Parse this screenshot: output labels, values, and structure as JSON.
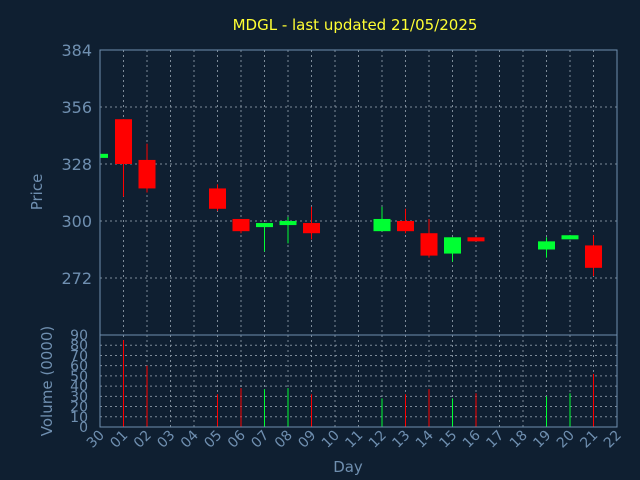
{
  "chart_data": {
    "type": "candlestick",
    "title": "MDGL - last updated 21/05/2025",
    "price_axis": {
      "label": "Price",
      "ticks": [
        272,
        300,
        328,
        356,
        384
      ],
      "ylim": [
        244,
        384
      ]
    },
    "volume_axis": {
      "label": "Volume (0000)",
      "ticks": [
        0,
        10,
        20,
        30,
        40,
        50,
        60,
        70,
        80,
        90
      ],
      "ylim": [
        0,
        90
      ]
    },
    "x_axis": {
      "label": "Day",
      "ticks": [
        "30",
        "01",
        "02",
        "03",
        "04",
        "05",
        "06",
        "07",
        "08",
        "09",
        "10",
        "11",
        "12",
        "13",
        "14",
        "15",
        "16",
        "17",
        "18",
        "19",
        "20",
        "21",
        "22"
      ]
    },
    "grid": true,
    "colors": {
      "background": "#0f1f31",
      "up": "#00ff33",
      "down": "#ff0000",
      "grid": "#7d8b99",
      "text": "#6f8fb0",
      "title": "#ffff33",
      "border": "#6f8fb0"
    },
    "candles": [
      {
        "day": "30",
        "open": 331,
        "high": 333,
        "low": 331,
        "close": 333,
        "volume": 0
      },
      {
        "day": "01",
        "open": 350,
        "high": 350,
        "low": 312,
        "close": 328,
        "volume": 85
      },
      {
        "day": "02",
        "open": 330,
        "high": 338,
        "low": 314,
        "close": 316,
        "volume": 60
      },
      {
        "day": "05",
        "open": 316,
        "high": 318,
        "low": 305,
        "close": 306,
        "volume": 32
      },
      {
        "day": "06",
        "open": 301,
        "high": 301,
        "low": 294,
        "close": 295,
        "volume": 38
      },
      {
        "day": "07",
        "open": 297,
        "high": 299,
        "low": 285,
        "close": 299,
        "volume": 37
      },
      {
        "day": "08",
        "open": 298,
        "high": 302,
        "low": 289,
        "close": 300,
        "volume": 38
      },
      {
        "day": "09",
        "open": 299,
        "high": 307,
        "low": 291,
        "close": 294,
        "volume": 32
      },
      {
        "day": "12",
        "open": 295,
        "high": 307,
        "low": 295,
        "close": 301,
        "volume": 28
      },
      {
        "day": "13",
        "open": 300,
        "high": 306,
        "low": 294,
        "close": 295,
        "volume": 32
      },
      {
        "day": "14",
        "open": 294,
        "high": 301,
        "low": 282,
        "close": 283,
        "volume": 37
      },
      {
        "day": "15",
        "open": 284,
        "high": 292,
        "low": 280,
        "close": 292,
        "volume": 28
      },
      {
        "day": "16",
        "open": 292,
        "high": 292,
        "low": 290,
        "close": 290,
        "volume": 33
      },
      {
        "day": "19",
        "open": 286,
        "high": 292,
        "low": 282,
        "close": 290,
        "volume": 30
      },
      {
        "day": "20",
        "open": 291,
        "high": 293,
        "low": 291,
        "close": 293,
        "volume": 33
      },
      {
        "day": "21",
        "open": 288,
        "high": 293,
        "low": 273,
        "close": 277,
        "volume": 52
      }
    ]
  }
}
